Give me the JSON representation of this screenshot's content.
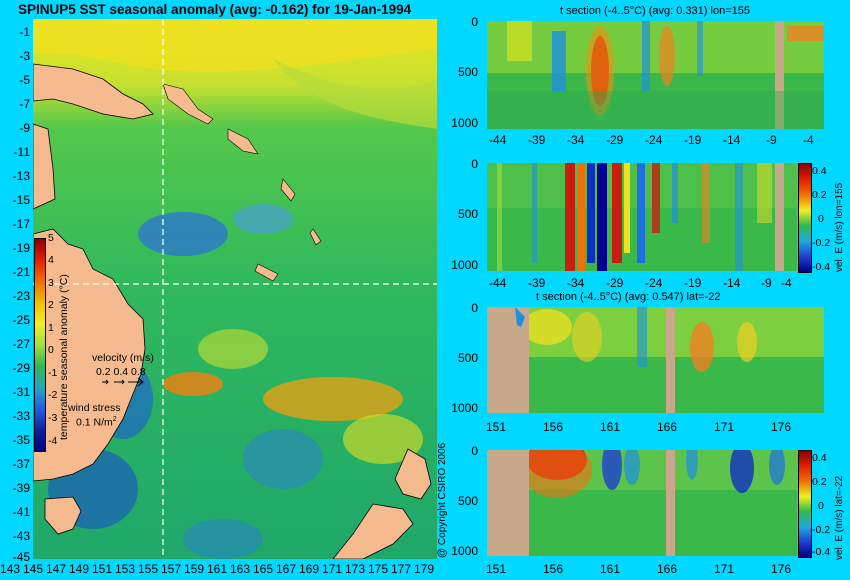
{
  "map": {
    "title": "SPINUP5 SST seasonal anomaly (avg: -0.162) for 19-Jan-1994",
    "lat_ticks": [
      "-1",
      "-3",
      "-5",
      "-7",
      "-9",
      "-11",
      "-13",
      "-15",
      "-17",
      "-19",
      "-21",
      "-23",
      "-25",
      "-27",
      "-29",
      "-31",
      "-33",
      "-35",
      "-37",
      "-39",
      "-41",
      "-43",
      "-45"
    ],
    "lon_ticks": [
      "143",
      "145",
      "147",
      "149",
      "151",
      "153",
      "155",
      "157",
      "159",
      "161",
      "163",
      "165",
      "167",
      "169",
      "171",
      "173",
      "175",
      "177",
      "179"
    ],
    "colorbar_ticks": [
      "5",
      "4",
      "3",
      "2",
      "1",
      "0",
      "-1",
      "-2",
      "-3",
      "-4"
    ],
    "colorbar_label": "temperature seasonal anomaly (°C)",
    "velocity_label": "velocity (m/s)",
    "velocity_scale": "0.2 0.4 0.8",
    "wind_label": "wind stress",
    "wind_scale": "0.1 N/m",
    "wind_scale_sup": "2",
    "copyright": "@ Copyright CSIRO 2006"
  },
  "panels": [
    {
      "title": "t section (-4..5°C) (avg: 0.331) lon=155",
      "y_ticks": [
        "0",
        "500",
        "1000"
      ],
      "x_ticks": [
        "-44",
        "-39",
        "-34",
        "-29",
        "-24",
        "-19",
        "-14",
        "-9",
        "-4"
      ]
    },
    {
      "title": "",
      "y_ticks": [
        "0",
        "500",
        "1000"
      ],
      "x_ticks": [
        "-44",
        "-39",
        "-34",
        "-29",
        "-24",
        "-19",
        "-14",
        "-9",
        "-4"
      ],
      "cb_ticks": [
        "0.4",
        "0.2",
        "0",
        "-0.2",
        "-0.4"
      ],
      "cb_label": "vel. E (m/s) lon=155"
    },
    {
      "title": "t section (-4..5°C) (avg: 0.547) lat=-22",
      "y_ticks": [
        "0",
        "500",
        "1000"
      ],
      "x_ticks": [
        "151",
        "156",
        "161",
        "166",
        "171",
        "176"
      ]
    },
    {
      "title": "",
      "y_ticks": [
        "0",
        "500",
        "1000"
      ],
      "x_ticks": [
        "151",
        "156",
        "161",
        "166",
        "171",
        "176"
      ],
      "cb_ticks": [
        "0.4",
        "0.2",
        "0",
        "-0.2",
        "-0.4"
      ],
      "cb_label": "vel. E (m/s) lat=-22"
    }
  ],
  "colors": {
    "background": "#00d8ff",
    "land": "#f5bb8e",
    "section_land": "#c8a88a"
  }
}
